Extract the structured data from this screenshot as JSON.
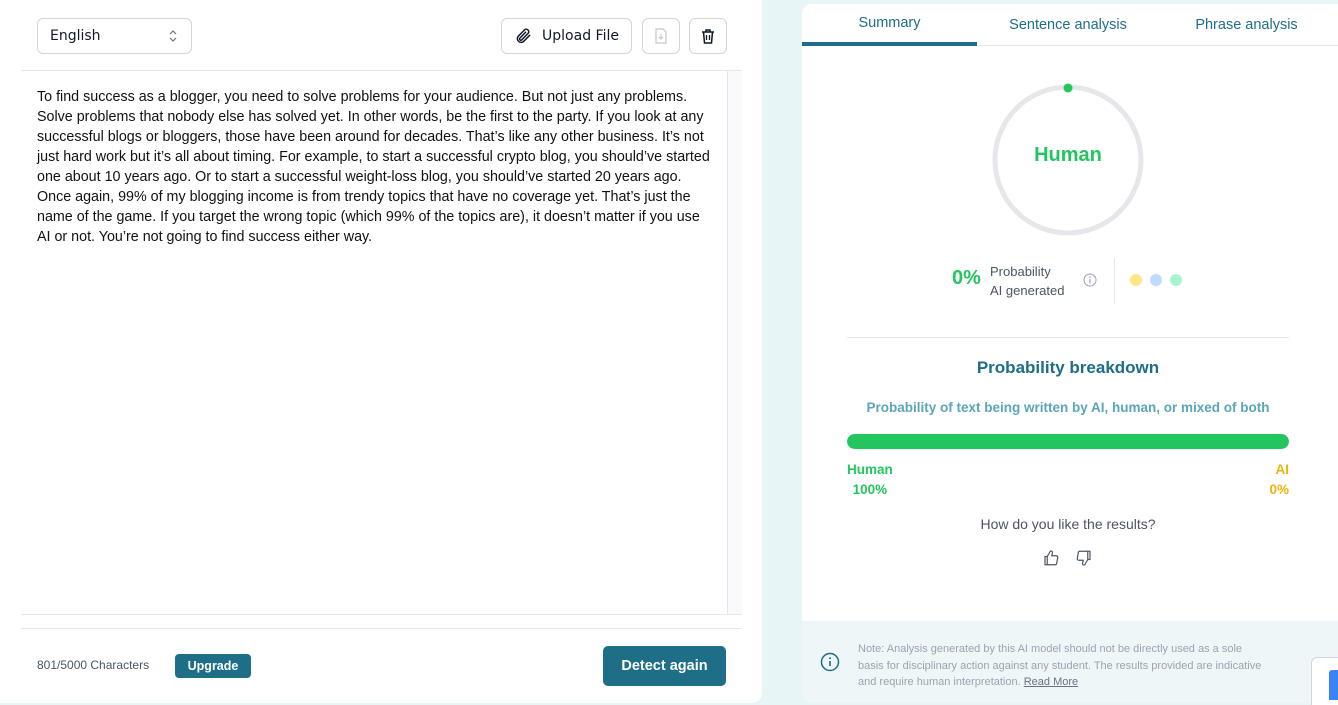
{
  "editor": {
    "language": "English",
    "upload_label": "Upload File",
    "text": "To find success as a blogger, you need to solve problems for your audience. But not just any problems. Solve problems that nobody else has solved yet. In other words, be the first to the party. If you look at any successful blogs or bloggers, those have been around for decades. That’s like any other business. It’s not just hard work but it’s all about timing. For example, to start a successful crypto blog, you should’ve started one about 10 years ago. Or to start a successful weight-loss blog, you should’ve started 20 years ago. Once again, 99% of my blogging income is from trendy topics that have no coverage yet. That’s just the name of the game. If you target the wrong topic (which 99% of the topics are), it doesn’t matter if you use AI or not. You’re not going to find success either way.",
    "char_count": "801/5000 Characters",
    "upgrade_label": "Upgrade",
    "detect_label": "Detect again"
  },
  "results": {
    "tabs": [
      "Summary",
      "Sentence analysis",
      "Phrase analysis"
    ],
    "active_tab": "Summary",
    "verdict": "Human",
    "ai_probability": "0%",
    "prob_label_line1": "Probability",
    "prob_label_line2": "AI generated",
    "breakdown_title": "Probability breakdown",
    "breakdown_subtitle": "Probability of text being written by AI, human, or mixed of both",
    "human_label": "Human",
    "human_pct": "100%",
    "human_fraction": 1.0,
    "ai_label": "AI",
    "ai_pct": "0%",
    "feedback_question": "How do you like the results?",
    "note": {
      "line1": "Note: Analysis generated by this AI model should not be directly used as a sole",
      "line2": "basis for disciplinary action against any student. The results provided are indicative",
      "line3": "and require human interpretation.",
      "link": "Read More"
    },
    "colors": {
      "accent": "#1e6e87",
      "human": "#22c55e",
      "ai": "#eab308"
    }
  }
}
